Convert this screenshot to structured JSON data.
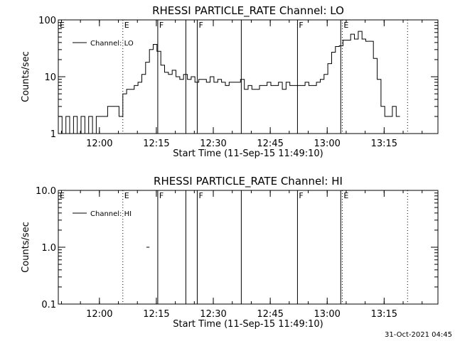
{
  "footer": {
    "timestamp": "31-Oct-2021 04:45"
  },
  "colors": {
    "background": "#ffffff",
    "foreground": "#000000"
  },
  "chart_data": [
    {
      "type": "line",
      "title": "RHESSI PARTICLE_RATE Channel: LO",
      "xlabel": "Start Time (11-Sep-15 11:49:10)",
      "ylabel": "Counts/sec",
      "x_unit": "minutes after 11:49:10",
      "xlim": [
        0,
        100
      ],
      "ylim": [
        1,
        100
      ],
      "yscale": "log",
      "x_ticks": [
        {
          "value": 10.83,
          "label": "12:00"
        },
        {
          "value": 25.83,
          "label": "12:15"
        },
        {
          "value": 40.83,
          "label": "12:30"
        },
        {
          "value": 55.83,
          "label": "12:45"
        },
        {
          "value": 70.83,
          "label": "13:00"
        },
        {
          "value": 85.83,
          "label": "13:15"
        }
      ],
      "y_ticks": [
        {
          "value": 1,
          "label": "1"
        },
        {
          "value": 10,
          "label": "10"
        },
        {
          "value": 100,
          "label": "100"
        }
      ],
      "legend": {
        "label": "Channel: LO",
        "placement": "top-left"
      },
      "flag_lines": [
        {
          "x": 17.0,
          "style": "dotted",
          "label": "E"
        },
        {
          "x": 26.2,
          "style": "solid",
          "label": "F"
        },
        {
          "x": 33.6,
          "style": "solid",
          "label": ""
        },
        {
          "x": 36.6,
          "style": "solid",
          "label": "F"
        },
        {
          "x": 48.2,
          "style": "solid",
          "label": ""
        },
        {
          "x": 63.0,
          "style": "solid",
          "label": "F"
        },
        {
          "x": 74.4,
          "style": "solid",
          "label": ""
        },
        {
          "x": 74.8,
          "style": "dotted",
          "label": "E"
        },
        {
          "x": 92.0,
          "style": "dotted",
          "label": ""
        }
      ],
      "corner_label": "E",
      "series": [
        {
          "name": "Channel: LO",
          "x": [
            0,
            1,
            2,
            3,
            4,
            5,
            6,
            7,
            8,
            9,
            10,
            11,
            12,
            13,
            14,
            15,
            16,
            16.5,
            17,
            18,
            19,
            20,
            21,
            22,
            23,
            24,
            25,
            26,
            27,
            28,
            29,
            30,
            31,
            32,
            33,
            34,
            35,
            36,
            37,
            38,
            39,
            40,
            41,
            42,
            43,
            44,
            45,
            46,
            47,
            48,
            49,
            50,
            51,
            52,
            53,
            54,
            55,
            56,
            57,
            58,
            59,
            60,
            61,
            62,
            63,
            64,
            65,
            66,
            67,
            68,
            69,
            70,
            71,
            72,
            73,
            74,
            75,
            76,
            77,
            78,
            79,
            80,
            81,
            82,
            83,
            84,
            85,
            86,
            87,
            88,
            89,
            90
          ],
          "y": [
            2,
            1,
            2,
            1,
            2,
            1,
            2,
            1,
            2,
            1,
            2,
            2,
            2,
            3,
            3,
            3,
            2,
            2,
            5,
            6,
            6,
            7,
            8,
            11,
            18,
            30,
            37,
            28,
            16,
            12,
            11,
            13,
            10,
            9,
            11,
            9,
            10,
            8,
            9,
            9,
            8,
            10,
            8,
            9,
            8,
            7,
            8,
            8,
            8,
            9,
            6,
            7,
            6,
            6,
            7,
            7,
            8,
            7,
            7,
            8,
            6,
            8,
            7,
            7,
            7,
            7,
            8,
            7,
            7,
            8,
            9,
            11,
            17,
            27,
            34,
            35,
            44,
            44,
            56,
            46,
            63,
            46,
            42,
            42,
            21,
            9,
            3,
            2,
            2,
            3,
            2,
            2
          ]
        }
      ]
    },
    {
      "type": "line",
      "title": "RHESSI PARTICLE_RATE Channel: HI",
      "xlabel": "Start Time (11-Sep-15 11:49:10)",
      "ylabel": "Counts/sec",
      "x_unit": "minutes after 11:49:10",
      "xlim": [
        0,
        100
      ],
      "ylim": [
        0.1,
        10
      ],
      "yscale": "log",
      "x_ticks": [
        {
          "value": 10.83,
          "label": "12:00"
        },
        {
          "value": 25.83,
          "label": "12:15"
        },
        {
          "value": 40.83,
          "label": "12:30"
        },
        {
          "value": 55.83,
          "label": "12:45"
        },
        {
          "value": 70.83,
          "label": "13:00"
        },
        {
          "value": 85.83,
          "label": "13:15"
        }
      ],
      "y_ticks": [
        {
          "value": 0.1,
          "label": "0.1"
        },
        {
          "value": 1,
          "label": "1.0"
        },
        {
          "value": 10,
          "label": "10.0"
        }
      ],
      "legend": {
        "label": "Channel: HI",
        "placement": "top-left"
      },
      "flag_lines": [
        {
          "x": 17.0,
          "style": "dotted",
          "label": "E"
        },
        {
          "x": 26.2,
          "style": "solid",
          "label": "F"
        },
        {
          "x": 33.6,
          "style": "solid",
          "label": ""
        },
        {
          "x": 36.6,
          "style": "solid",
          "label": "F"
        },
        {
          "x": 48.2,
          "style": "solid",
          "label": ""
        },
        {
          "x": 63.0,
          "style": "solid",
          "label": "F"
        },
        {
          "x": 74.4,
          "style": "solid",
          "label": ""
        },
        {
          "x": 74.8,
          "style": "dotted",
          "label": "E"
        },
        {
          "x": 92.0,
          "style": "dotted",
          "label": ""
        }
      ],
      "corner_label": "E",
      "series": [
        {
          "name": "Channel: HI",
          "segments": [
            {
              "x": [
                23.2,
                24.0
              ],
              "y": [
                1,
                1
              ]
            }
          ]
        }
      ]
    }
  ]
}
